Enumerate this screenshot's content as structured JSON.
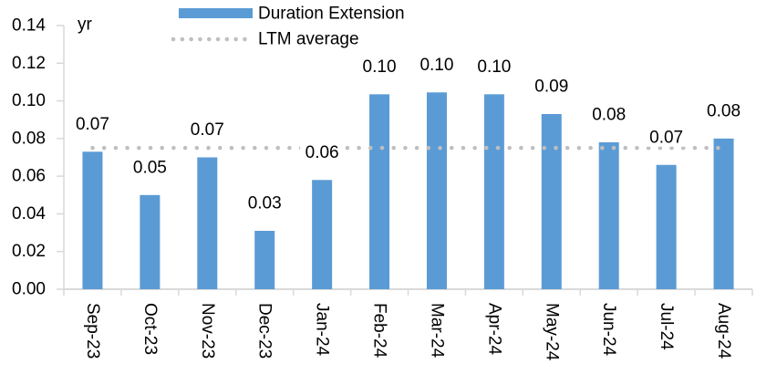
{
  "chart_data": {
    "type": "bar",
    "title": "",
    "unit_label": "yr",
    "categories": [
      "Sep-23",
      "Oct-23",
      "Nov-23",
      "Dec-23",
      "Jan-24",
      "Feb-24",
      "Mar-24",
      "Apr-24",
      "May-24",
      "Jun-24",
      "Jul-24",
      "Aug-24"
    ],
    "series": [
      {
        "name": "Duration Extension",
        "type": "bar",
        "color": "#5B9BD5",
        "values": [
          0.073,
          0.05,
          0.07,
          0.031,
          0.058,
          0.1035,
          0.1045,
          0.1035,
          0.093,
          0.078,
          0.066,
          0.08
        ],
        "data_labels": [
          "0.07",
          "0.05",
          "0.07",
          "0.03",
          "0.06",
          "0.10",
          "0.10",
          "0.10",
          "0.09",
          "0.08",
          "0.07",
          "0.08"
        ]
      },
      {
        "name": "LTM average",
        "type": "line",
        "line_style": "dotted",
        "color": "#BFBFBF",
        "value": 0.075
      }
    ],
    "y_axis": {
      "min": 0,
      "max": 0.14,
      "tick_step": 0.02,
      "tick_labels": [
        "0.00",
        "0.02",
        "0.04",
        "0.06",
        "0.08",
        "0.10",
        "0.12",
        "0.14"
      ]
    },
    "legend_position": "top",
    "grid": false,
    "axis_color": "#D9D9D9",
    "text_color": "#000000"
  }
}
